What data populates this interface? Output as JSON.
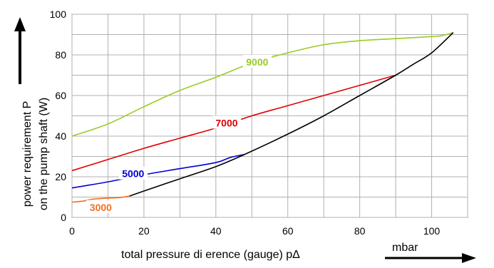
{
  "chart_data": {
    "type": "line",
    "title": "",
    "xlabel": "total pressure di   erence (gauge)   pΔ",
    "xunit": "mbar",
    "ylabel_line1": "power requirement P",
    "ylabel_line2": "on the pump shaft (W)",
    "xlim": [
      0,
      110
    ],
    "ylim": [
      0,
      100
    ],
    "xticks": [
      0,
      20,
      40,
      60,
      80,
      100
    ],
    "yticks": [
      0,
      20,
      40,
      60,
      80,
      100
    ],
    "grid": true,
    "legend": "none",
    "series": [
      {
        "name": "3000",
        "color": "#f07020",
        "points": [
          [
            0,
            7.5
          ],
          [
            3,
            8
          ],
          [
            6,
            9
          ],
          [
            10,
            9.5
          ],
          [
            13,
            9.7
          ],
          [
            16,
            10.5
          ]
        ],
        "label_at": [
          8,
          5
        ]
      },
      {
        "name": "5000",
        "color": "#0000d0",
        "points": [
          [
            0,
            14.5
          ],
          [
            10,
            17.5
          ],
          [
            20,
            21
          ],
          [
            30,
            24
          ],
          [
            40,
            27
          ],
          [
            44,
            29.5
          ],
          [
            48,
            31
          ]
        ],
        "label_at": [
          17,
          21.5
        ]
      },
      {
        "name": "7000",
        "color": "#e00000",
        "points": [
          [
            0,
            23
          ],
          [
            10,
            28.5
          ],
          [
            20,
            34
          ],
          [
            30,
            39
          ],
          [
            40,
            44
          ],
          [
            50,
            50
          ],
          [
            60,
            55
          ],
          [
            70,
            60
          ],
          [
            80,
            65
          ],
          [
            90,
            70
          ]
        ],
        "label_at": [
          43,
          46.5
        ]
      },
      {
        "name": "9000",
        "color": "#99cc22",
        "points": [
          [
            0,
            40
          ],
          [
            10,
            46
          ],
          [
            20,
            54.5
          ],
          [
            30,
            62.5
          ],
          [
            40,
            69
          ],
          [
            50,
            76
          ],
          [
            60,
            81
          ],
          [
            70,
            85
          ],
          [
            80,
            87
          ],
          [
            90,
            88
          ],
          [
            100,
            89
          ],
          [
            103,
            89.5
          ],
          [
            106,
            91
          ]
        ],
        "label_at": [
          51.5,
          76.5
        ]
      },
      {
        "name": "",
        "color": "#000000",
        "points": [
          [
            16,
            10.5
          ],
          [
            20,
            13
          ],
          [
            30,
            19
          ],
          [
            40,
            25
          ],
          [
            48,
            31
          ],
          [
            60,
            41
          ],
          [
            70,
            50
          ],
          [
            80,
            60
          ],
          [
            90,
            70
          ],
          [
            95,
            75.5
          ],
          [
            100,
            81
          ],
          [
            106,
            91
          ]
        ],
        "label_at": null
      }
    ]
  }
}
